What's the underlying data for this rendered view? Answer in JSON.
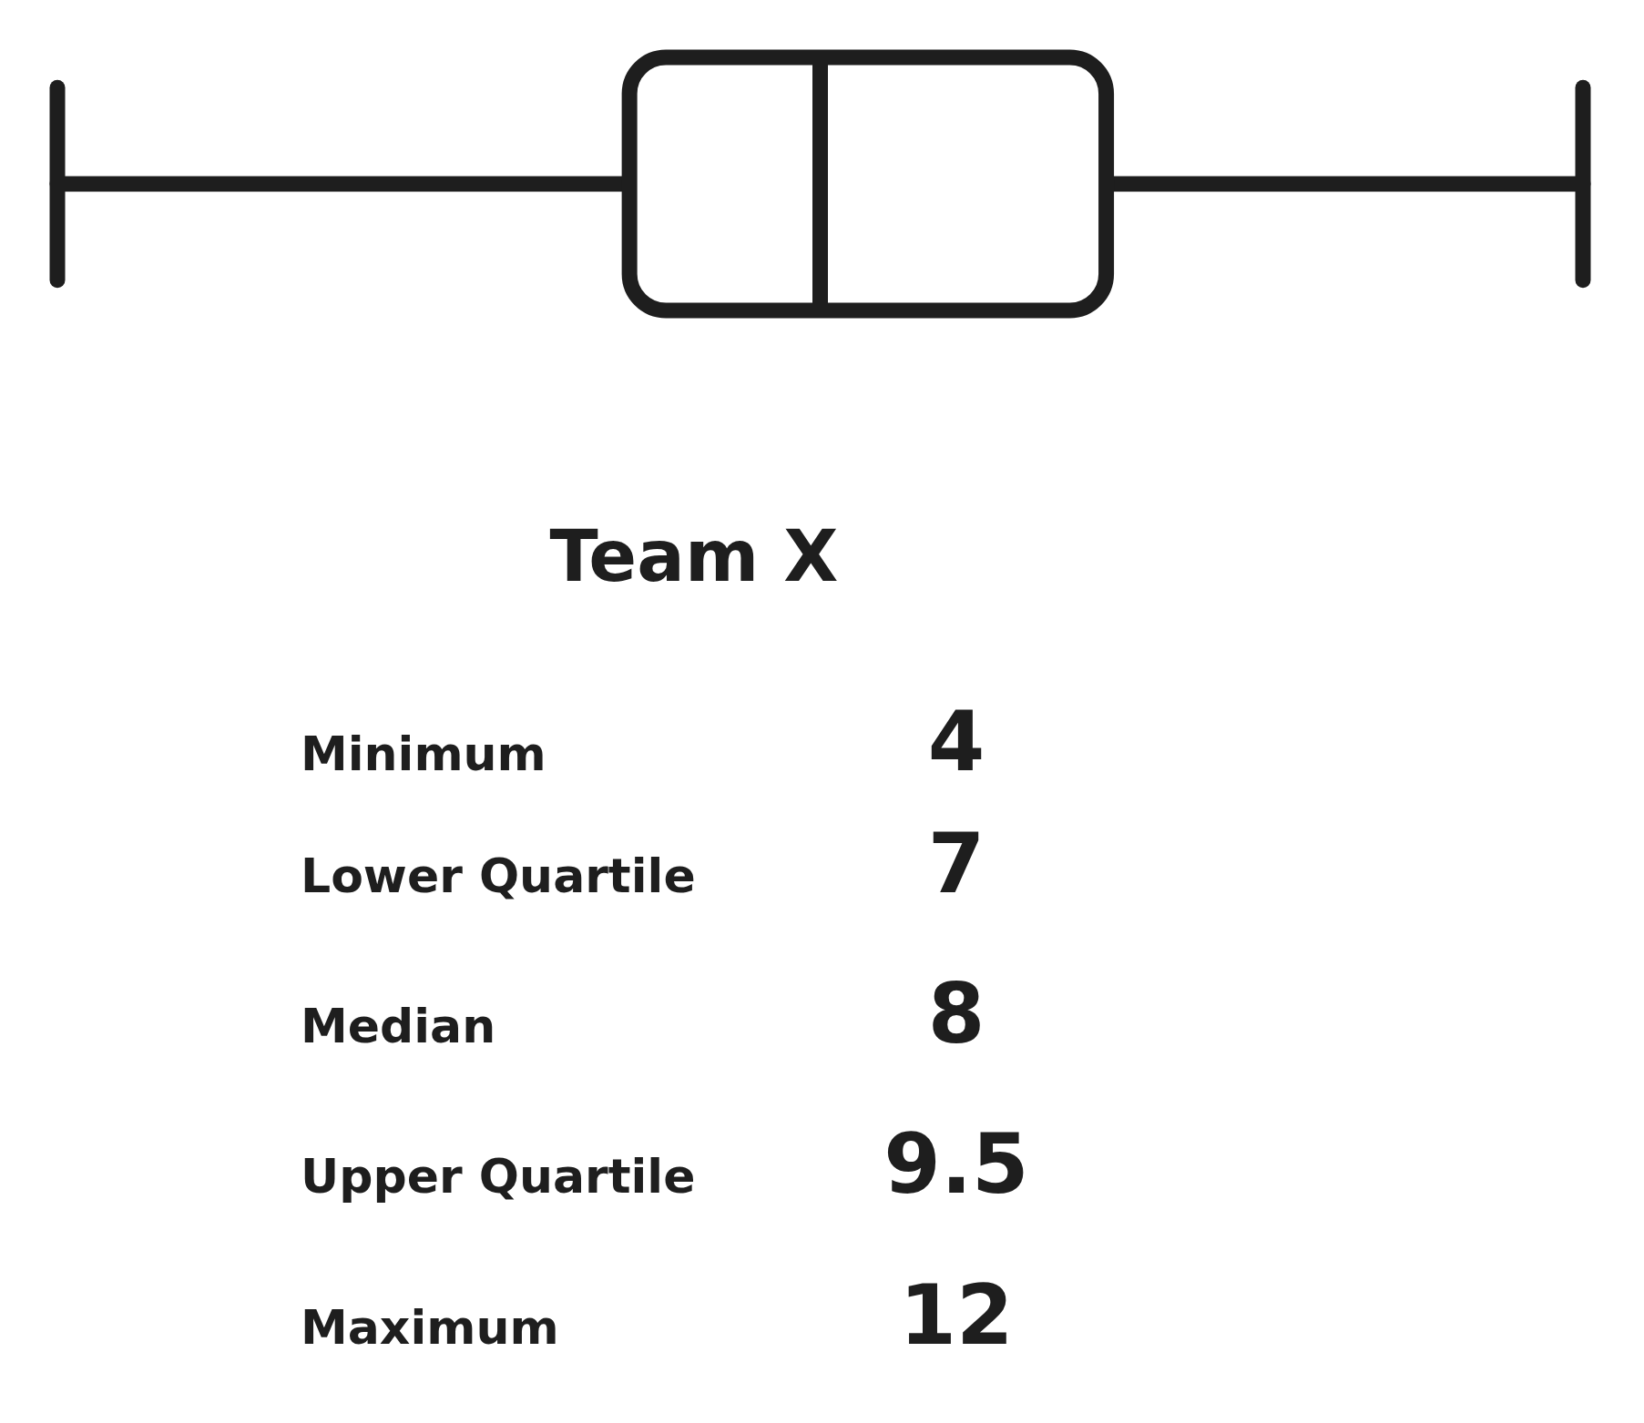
{
  "chart_data": {
    "type": "other",
    "title": "Team X",
    "categories": [
      "Minimum",
      "Lower Quartile",
      "Median",
      "Upper Quartile",
      "Maximum"
    ],
    "values": [
      4,
      7,
      8,
      9.5,
      12
    ],
    "data_labels": true
  }
}
